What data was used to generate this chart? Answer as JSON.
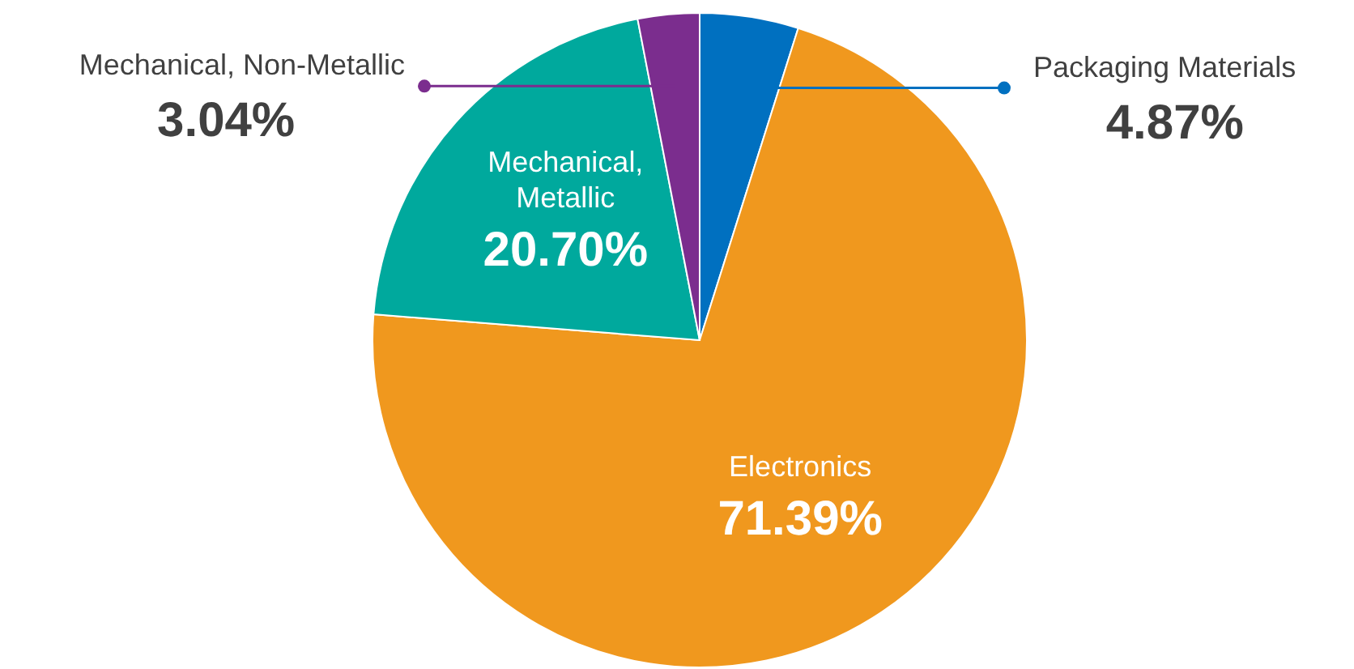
{
  "chart_data": {
    "type": "pie",
    "categories": [
      "Packaging Materials",
      "Electronics",
      "Mechanical, Metallic",
      "Mechanical, Non-Metallic"
    ],
    "values": [
      4.87,
      71.39,
      20.7,
      3.04
    ],
    "value_labels": [
      "4.87%",
      "71.39%",
      "20.70%",
      "3.04%"
    ],
    "colors": [
      "#0070c0",
      "#f0981e",
      "#00a99d",
      "#7b2d8e"
    ]
  }
}
